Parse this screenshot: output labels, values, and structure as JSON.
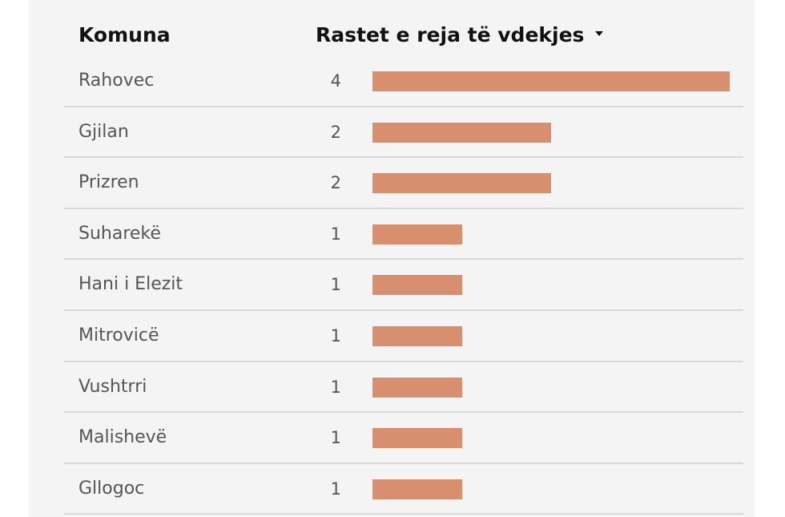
{
  "table": {
    "header_komuna": "Komuna",
    "header_value": "Rastet e reja të vdekjes",
    "sort_icon": "caret-down-icon"
  },
  "colors": {
    "bar": "#d88f70",
    "background": "#f4f4f4",
    "divider": "#d9d9d9"
  },
  "chart_data": {
    "type": "bar",
    "orientation": "horizontal",
    "categories": [
      "Rahovec",
      "Gjilan",
      "Prizren",
      "Suharekë",
      "Hani i Elezit",
      "Mitrovicë",
      "Vushtrri",
      "Malishevë",
      "Gllogoc"
    ],
    "values": [
      4,
      2,
      2,
      1,
      1,
      1,
      1,
      1,
      1
    ],
    "xlim": [
      0,
      4
    ],
    "grid": false
  }
}
